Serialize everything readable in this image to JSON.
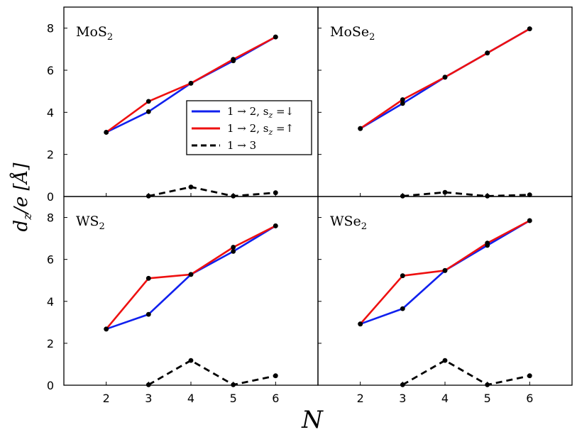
{
  "chart_data": {
    "type": "line",
    "x": [
      2,
      3,
      4,
      5,
      6
    ],
    "xlim": [
      1,
      7
    ],
    "ylim": [
      0,
      9
    ],
    "xticks": [
      "2",
      "3",
      "4",
      "5",
      "6"
    ],
    "yticks": [
      "0",
      "2",
      "4",
      "6",
      "8"
    ],
    "xlabel": "N",
    "ylabel": "d_z / e [Å]",
    "ylabel_parts": {
      "d": "d",
      "sub": "z",
      "rest": "/e [Å]"
    },
    "legend": {
      "placement": "top-panel center-right",
      "entries": [
        {
          "label": "1 → 2, s",
          "sub": "z",
          "tail": " =↓",
          "color": "#1020ee",
          "style": "solid"
        },
        {
          "label": "1 → 2, s",
          "sub": "z",
          "tail": " =↑",
          "color": "#ee1010",
          "style": "solid"
        },
        {
          "label": "1 → 3",
          "sub": "",
          "tail": "",
          "color": "#000000",
          "style": "dashed"
        }
      ]
    },
    "panels": [
      {
        "title_base": "MoS",
        "title_sub": "2",
        "series": [
          {
            "name": "1→2 spin down",
            "color": "#1020ee",
            "dash": false,
            "x": [
              2,
              3,
              4,
              5,
              6
            ],
            "values": [
              3.05,
              4.03,
              5.38,
              6.45,
              7.58
            ]
          },
          {
            "name": "1→2 spin up",
            "color": "#ee1010",
            "dash": false,
            "x": [
              2,
              3,
              4,
              5,
              6
            ],
            "values": [
              3.05,
              4.52,
              5.38,
              6.52,
              7.58
            ]
          },
          {
            "name": "1→3",
            "color": "#000000",
            "dash": true,
            "x": [
              3,
              4,
              5,
              6
            ],
            "values": [
              0.02,
              0.45,
              0.02,
              0.18
            ]
          }
        ]
      },
      {
        "title_base": "MoSe",
        "title_sub": "2",
        "series": [
          {
            "name": "1→2 spin down",
            "color": "#1020ee",
            "dash": false,
            "x": [
              2,
              3,
              4,
              5,
              6
            ],
            "values": [
              3.23,
              4.42,
              5.67,
              6.82,
              7.97
            ]
          },
          {
            "name": "1→2 spin up",
            "color": "#ee1010",
            "dash": false,
            "x": [
              2,
              3,
              4,
              5,
              6
            ],
            "values": [
              3.23,
              4.6,
              5.67,
              6.82,
              7.97
            ]
          },
          {
            "name": "1→3",
            "color": "#000000",
            "dash": true,
            "x": [
              3,
              4,
              5,
              6
            ],
            "values": [
              0.02,
              0.2,
              0.02,
              0.08
            ]
          }
        ]
      },
      {
        "title_base": "WS",
        "title_sub": "2",
        "series": [
          {
            "name": "1→2 spin down",
            "color": "#1020ee",
            "dash": false,
            "x": [
              2,
              3,
              4,
              5,
              6
            ],
            "values": [
              2.68,
              3.38,
              5.28,
              6.38,
              7.6
            ]
          },
          {
            "name": "1→2 spin up",
            "color": "#ee1010",
            "dash": false,
            "x": [
              2,
              3,
              4,
              5,
              6
            ],
            "values": [
              2.68,
              5.1,
              5.28,
              6.58,
              7.6
            ]
          },
          {
            "name": "1→3",
            "color": "#000000",
            "dash": true,
            "x": [
              3,
              4,
              5,
              6
            ],
            "values": [
              0.02,
              1.18,
              0.02,
              0.45
            ]
          }
        ]
      },
      {
        "title_base": "WSe",
        "title_sub": "2",
        "series": [
          {
            "name": "1→2 spin down",
            "color": "#1020ee",
            "dash": false,
            "x": [
              2,
              3,
              4,
              5,
              6
            ],
            "values": [
              2.92,
              3.65,
              5.47,
              6.67,
              7.85
            ]
          },
          {
            "name": "1→2 spin up",
            "color": "#ee1010",
            "dash": false,
            "x": [
              2,
              3,
              4,
              5,
              6
            ],
            "values": [
              2.92,
              5.22,
              5.47,
              6.78,
              7.85
            ]
          },
          {
            "name": "1→3",
            "color": "#000000",
            "dash": true,
            "x": [
              3,
              4,
              5,
              6
            ],
            "values": [
              0.02,
              1.18,
              0.02,
              0.45
            ]
          }
        ]
      }
    ]
  }
}
